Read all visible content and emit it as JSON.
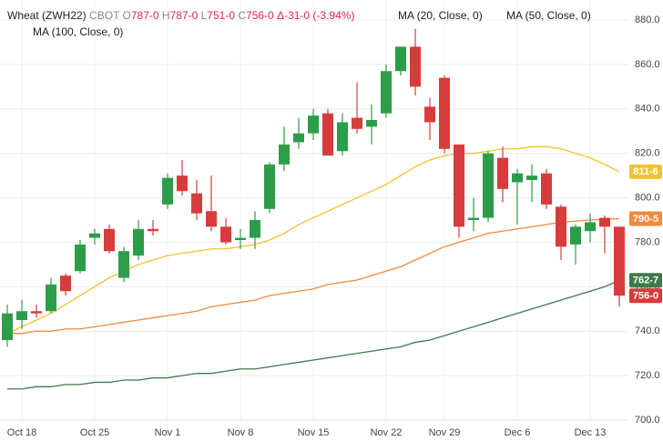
{
  "chart_data": {
    "type": "candlestick",
    "header": {
      "symbol": "Wheat (ZWH22)",
      "exchange": "CBOT",
      "ohlc": [
        {
          "key": "O",
          "value": "787-0"
        },
        {
          "key": "H",
          "value": "787-0"
        },
        {
          "key": "L",
          "value": "751-0"
        },
        {
          "key": "C",
          "value": "756-0"
        }
      ],
      "change": "Δ-31-0 (-3.94%)"
    },
    "categories": [
      null,
      "Oct 18",
      null,
      null,
      null,
      null,
      "Oct 25",
      null,
      null,
      null,
      null,
      "Nov 1",
      null,
      null,
      null,
      null,
      "Nov 8",
      null,
      null,
      null,
      null,
      "Nov 15",
      null,
      null,
      null,
      null,
      "Nov 22",
      null,
      null,
      null,
      "Nov 29",
      null,
      null,
      null,
      null,
      "Dec 6",
      null,
      null,
      null,
      null,
      "Dec 13",
      null,
      null
    ],
    "ohlc": {
      "up_color": "#2e9d4a",
      "down_color": "#d73c3c",
      "open": [
        736,
        745,
        749,
        749,
        765,
        767,
        782,
        786,
        764,
        774,
        786,
        797,
        810,
        802,
        794,
        787,
        781,
        782,
        795,
        815,
        825,
        829,
        838,
        821,
        836,
        832,
        838,
        857,
        868,
        841,
        854,
        824,
        790,
        791,
        818,
        807,
        808,
        811,
        796,
        779,
        785,
        791,
        787
      ],
      "high": [
        752,
        754,
        752,
        764,
        766,
        781,
        786,
        788,
        778,
        790,
        790,
        811,
        817,
        808,
        810,
        791,
        786,
        794,
        816,
        832,
        836,
        840,
        840,
        838,
        852,
        842,
        860,
        868,
        876,
        845,
        855,
        824,
        800,
        821,
        823,
        813,
        815,
        813,
        797,
        788,
        793,
        792,
        787
      ],
      "low": [
        733,
        741,
        746,
        748,
        756,
        766,
        779,
        775,
        762,
        772,
        783,
        795,
        801,
        790,
        785,
        779,
        777,
        777,
        793,
        812,
        822,
        826,
        819,
        819,
        829,
        824,
        836,
        855,
        846,
        826,
        820,
        782,
        785,
        789,
        798,
        788,
        798,
        795,
        772,
        770,
        780,
        775,
        751
      ],
      "close": [
        748,
        749,
        748,
        761,
        758,
        779,
        784,
        776,
        776,
        786,
        785,
        809,
        803,
        793,
        787,
        780,
        782,
        790,
        815,
        824,
        829,
        837,
        819,
        834,
        831,
        835,
        857,
        868,
        850,
        834,
        822,
        787,
        791,
        820,
        804,
        811,
        810,
        797,
        778,
        787,
        789,
        787,
        756
      ],
      "close_value_labels": [
        null,
        null,
        null,
        null,
        null,
        null,
        null,
        null,
        null,
        null,
        null,
        null,
        null,
        null,
        null,
        null,
        null,
        null,
        null,
        null,
        null,
        null,
        null,
        null,
        null,
        null,
        null,
        null,
        null,
        null,
        null,
        null,
        null,
        null,
        null,
        null,
        null,
        null,
        null,
        null,
        null,
        null,
        "756-0"
      ]
    },
    "series": [
      {
        "name": "MA (20, Close, 0)",
        "color": "#f2c232",
        "values": [
          739,
          742,
          745,
          748,
          752,
          756,
          760,
          764,
          767,
          770,
          772,
          774,
          775,
          776,
          777,
          777,
          778,
          779,
          781,
          784,
          788,
          791,
          794,
          797,
          800,
          803,
          806,
          810,
          814,
          817,
          819,
          820,
          820,
          821,
          822,
          822,
          823,
          823,
          822,
          820,
          818,
          815,
          811.75
        ],
        "value_labels": [
          null,
          null,
          null,
          null,
          null,
          null,
          null,
          null,
          null,
          null,
          null,
          null,
          null,
          null,
          null,
          null,
          null,
          null,
          null,
          null,
          null,
          null,
          null,
          null,
          null,
          null,
          null,
          null,
          null,
          null,
          null,
          null,
          null,
          null,
          null,
          null,
          null,
          null,
          null,
          null,
          null,
          null,
          "811-6"
        ]
      },
      {
        "name": "MA (50, Close, 0)",
        "color": "#f08a3c",
        "values": [
          739,
          739,
          740,
          740,
          741,
          741,
          742,
          743,
          744,
          745,
          746,
          747,
          748,
          749,
          751,
          752,
          753,
          754,
          756,
          757,
          758,
          759,
          761,
          762,
          763,
          765,
          767,
          769,
          772,
          775,
          778,
          780,
          782,
          784,
          785,
          786,
          787,
          788,
          789,
          789.5,
          790,
          790.3,
          790.625
        ],
        "value_labels": [
          null,
          null,
          null,
          null,
          null,
          null,
          null,
          null,
          null,
          null,
          null,
          null,
          null,
          null,
          null,
          null,
          null,
          null,
          null,
          null,
          null,
          null,
          null,
          null,
          null,
          null,
          null,
          null,
          null,
          null,
          null,
          null,
          null,
          null,
          null,
          null,
          null,
          null,
          null,
          null,
          null,
          null,
          "790-5"
        ]
      },
      {
        "name": "MA (100, Close, 0)",
        "color": "#3e7a4c",
        "values": [
          714,
          714,
          715,
          715,
          716,
          716,
          717,
          717,
          718,
          718,
          719,
          719,
          720,
          721,
          721,
          722,
          723,
          723,
          724,
          725,
          726,
          727,
          728,
          729,
          730,
          731,
          732,
          733,
          735,
          736,
          738,
          740,
          742,
          744,
          746,
          748,
          750,
          752,
          754,
          756,
          758,
          760,
          762.875
        ],
        "value_labels": [
          null,
          null,
          null,
          null,
          null,
          null,
          null,
          null,
          null,
          null,
          null,
          null,
          null,
          null,
          null,
          null,
          null,
          null,
          null,
          null,
          null,
          null,
          null,
          null,
          null,
          null,
          null,
          null,
          null,
          null,
          null,
          null,
          null,
          null,
          null,
          null,
          null,
          null,
          null,
          null,
          null,
          null,
          "762-7"
        ]
      }
    ],
    "ylim": [
      700,
      889
    ],
    "yticks": [
      {
        "value": 700,
        "label": "700.0"
      },
      {
        "value": 720,
        "label": "720.0"
      },
      {
        "value": 740,
        "label": "740.0"
      },
      {
        "value": 760,
        "label": "760.0"
      },
      {
        "value": 780,
        "label": "780.0"
      },
      {
        "value": 800,
        "label": "800.0"
      },
      {
        "value": 820,
        "label": "820.0"
      },
      {
        "value": 840,
        "label": "840.0"
      },
      {
        "value": 860,
        "label": "860.0"
      },
      {
        "value": 880,
        "label": "880.0"
      }
    ],
    "grid": true
  }
}
